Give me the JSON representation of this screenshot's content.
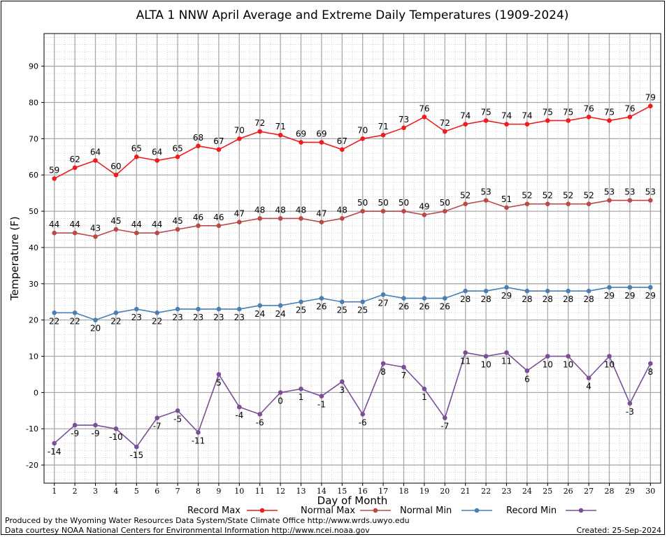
{
  "chart_data": {
    "type": "line",
    "title": "ALTA 1 NNW April Average and Extreme Daily Temperatures (1909-2024)",
    "xlabel": "Day of Month",
    "ylabel": "Temperature (F)",
    "x": [
      1,
      2,
      3,
      4,
      5,
      6,
      7,
      8,
      9,
      10,
      11,
      12,
      13,
      14,
      15,
      16,
      17,
      18,
      19,
      20,
      21,
      22,
      23,
      24,
      25,
      26,
      27,
      28,
      29,
      30
    ],
    "xlim": [
      0.5,
      30.5
    ],
    "ylim": [
      -25,
      99
    ],
    "yticks": [
      -20,
      -10,
      0,
      10,
      20,
      30,
      40,
      50,
      60,
      70,
      80,
      90
    ],
    "grid": true,
    "legend_position": "bottom",
    "series": [
      {
        "name": "Record Max",
        "color": "#ee1c1c",
        "label_pos": "above",
        "values": [
          59,
          62,
          64,
          60,
          65,
          64,
          65,
          68,
          67,
          70,
          72,
          71,
          69,
          69,
          67,
          70,
          71,
          73,
          76,
          72,
          74,
          75,
          74,
          74,
          75,
          75,
          76,
          75,
          76,
          79
        ]
      },
      {
        "name": "Normal Max",
        "color": "#b94a4a",
        "label_pos": "above",
        "values": [
          44,
          44,
          43,
          45,
          44,
          44,
          45,
          46,
          46,
          47,
          48,
          48,
          48,
          47,
          48,
          50,
          50,
          50,
          49,
          50,
          52,
          53,
          51,
          52,
          52,
          52,
          52,
          53,
          53,
          53
        ]
      },
      {
        "name": "Normal Min",
        "color": "#4a7fb5",
        "label_pos": "below",
        "values": [
          22,
          22,
          20,
          22,
          23,
          22,
          23,
          23,
          23,
          23,
          24,
          24,
          25,
          26,
          25,
          25,
          27,
          26,
          26,
          26,
          28,
          28,
          29,
          28,
          28,
          28,
          28,
          29,
          29,
          29
        ]
      },
      {
        "name": "Record Min",
        "color": "#7a4f96",
        "label_pos": "below",
        "values": [
          -14,
          -9,
          -9,
          -10,
          -15,
          -7,
          -5,
          -11,
          5,
          -4,
          -6,
          0,
          1,
          -1,
          3,
          -6,
          8,
          7,
          1,
          -7,
          11,
          10,
          11,
          6,
          10,
          10,
          4,
          10,
          -3,
          8
        ]
      }
    ]
  },
  "footer": {
    "produced_by": "Produced by the Wyoming Water Resources Data System/State Climate Office http://www.wrds.uwyo.edu",
    "courtesy": "Data courtesy NOAA National Centers for Environmental Information http://www.ncei.noaa.gov",
    "created": "Created:  25-Sep-2024"
  }
}
